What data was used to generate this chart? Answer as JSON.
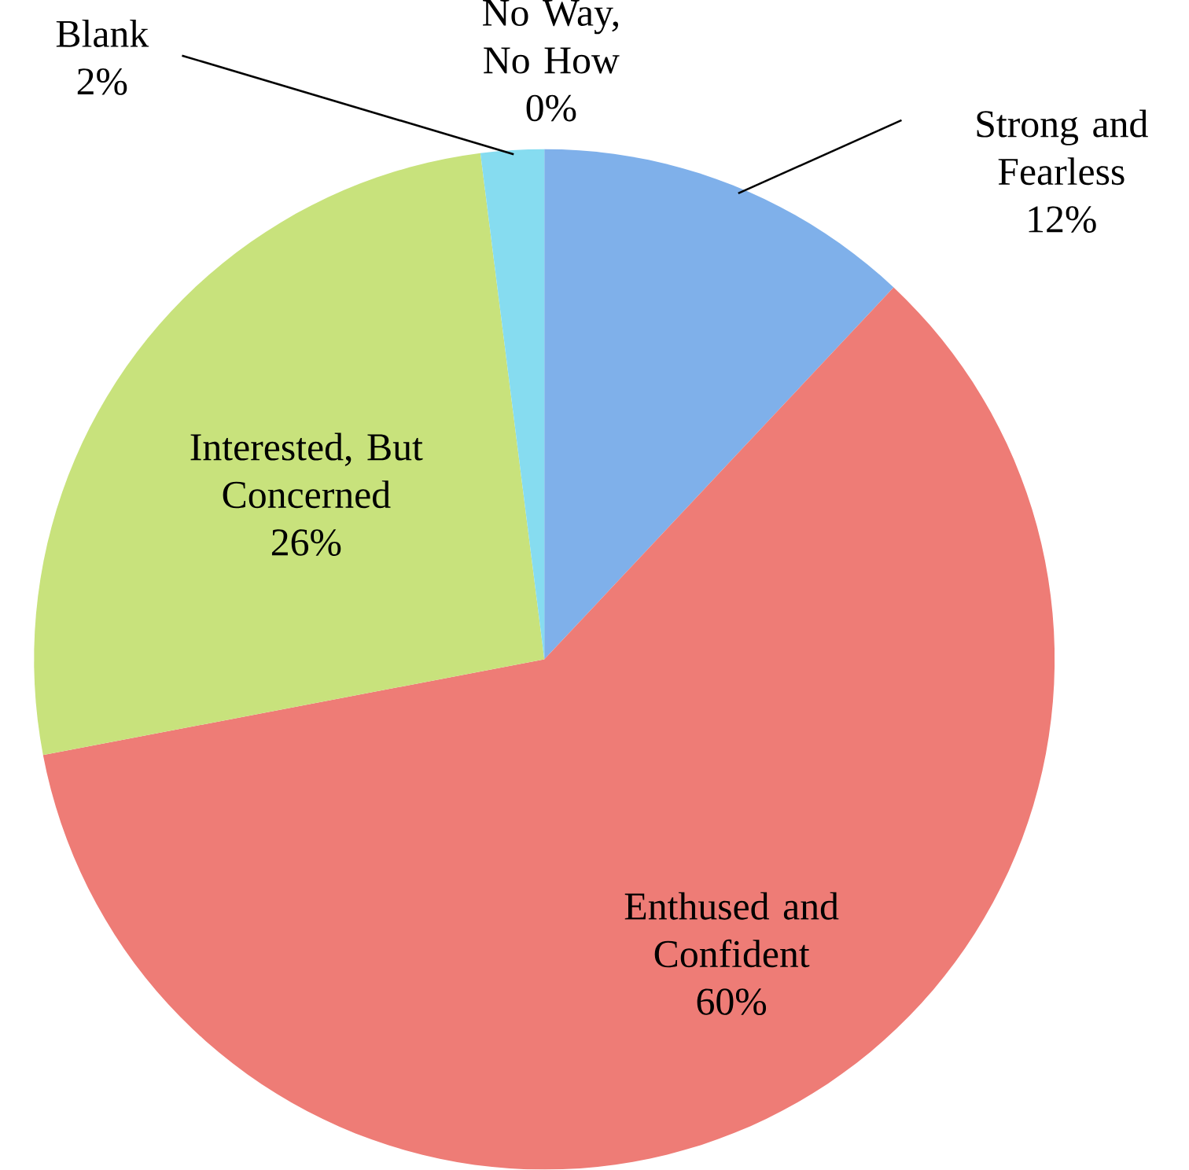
{
  "chart_data": {
    "type": "pie",
    "categories": [
      "Strong and Fearless",
      "Enthused and Confident",
      "Interested, But Concerned",
      "Blank",
      "No Way, No How"
    ],
    "values": [
      12,
      60,
      26,
      2,
      0
    ],
    "value_labels": [
      "12%",
      "60%",
      "26%",
      "2%",
      "0%"
    ],
    "colors": [
      "#7fb0ea",
      "#ee7c76",
      "#c8e27c",
      "#86dcf0",
      "#b89ce0"
    ]
  }
}
